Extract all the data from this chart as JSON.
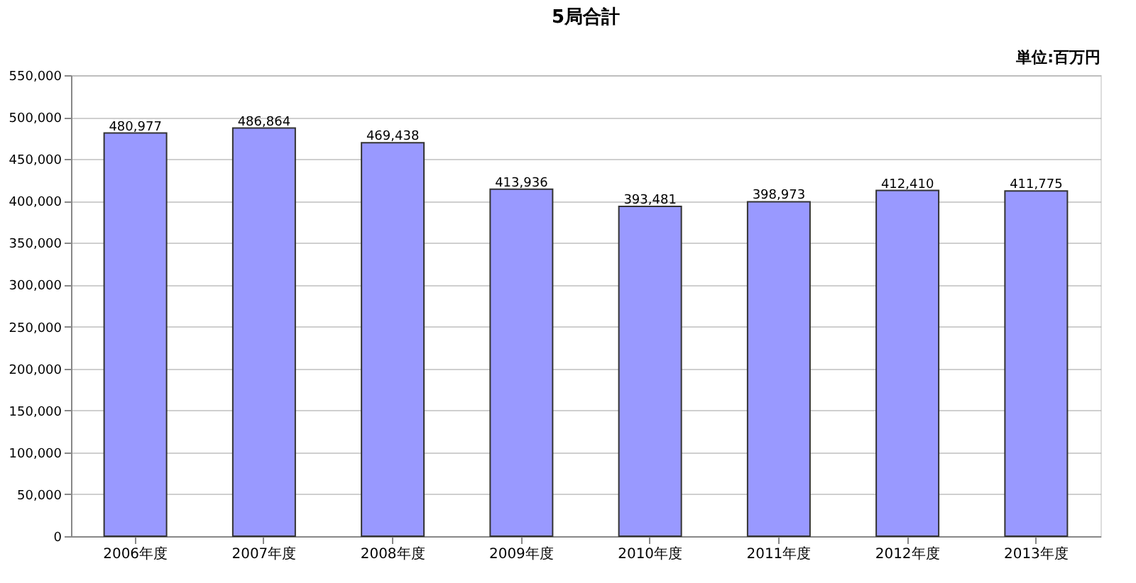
{
  "chart_data": {
    "type": "bar",
    "title": "5局合計",
    "annotations": [
      "単位:百万円"
    ],
    "categories": [
      "2006年度",
      "2007年度",
      "2008年度",
      "2009年度",
      "2010年度",
      "2011年度",
      "2012年度",
      "2013年度"
    ],
    "values": [
      480977,
      486864,
      469438,
      413936,
      393481,
      398973,
      412410,
      411775
    ],
    "value_labels": [
      "480,977",
      "486,864",
      "469,438",
      "413,936",
      "393,481",
      "398,973",
      "412,410",
      "411,775"
    ],
    "color": "#9999ff",
    "ylim": [
      0,
      550000
    ],
    "yticks": [
      0,
      {
        "value": 50000,
        "label": "50,000"
      },
      {
        "value": 100000,
        "label": "100,000"
      },
      {
        "value": 150000,
        "label": "150,000"
      },
      {
        "value": 200000,
        "label": "200,000"
      },
      {
        "value": 250000,
        "label": "250,000"
      },
      {
        "value": 300000,
        "label": "300,000"
      },
      {
        "value": 350000,
        "label": "350,000"
      },
      {
        "value": 400000,
        "label": "400,000"
      },
      {
        "value": 450000,
        "label": "450,000"
      },
      {
        "value": 500000,
        "label": "500,000"
      },
      {
        "value": 550000,
        "label": "550,000"
      }
    ],
    "grid": "y"
  }
}
